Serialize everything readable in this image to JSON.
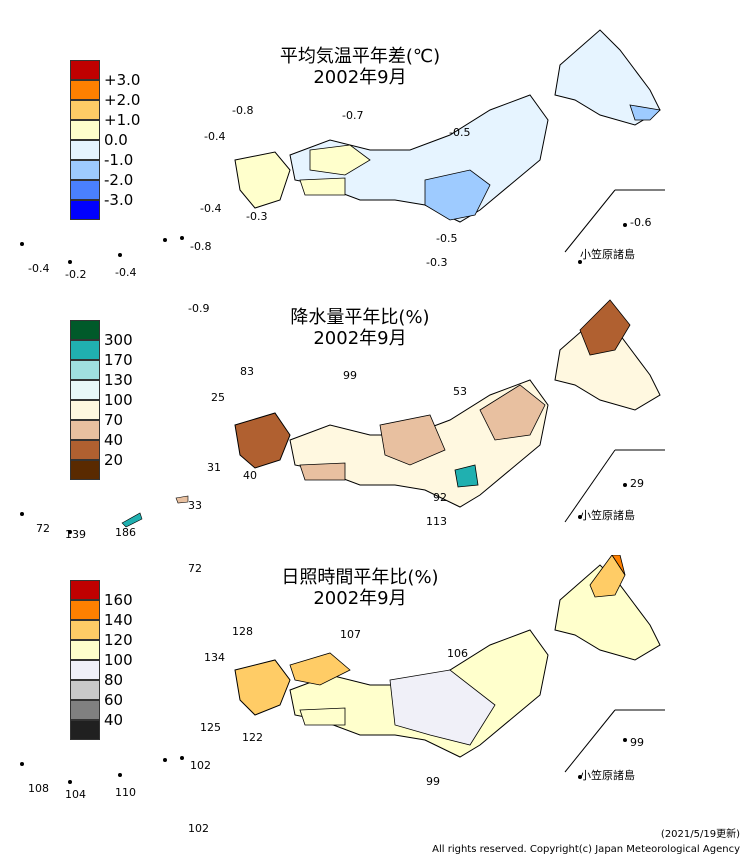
{
  "panels": [
    {
      "title_line1": "平均気温平年差(℃)",
      "title_line2": "2002年9月",
      "legend": [
        {
          "label": "+3.0",
          "color": "#c00000"
        },
        {
          "label": "+2.0",
          "color": "#ff8000"
        },
        {
          "label": "+1.0",
          "color": "#ffcc66"
        },
        {
          "label": "0.0",
          "color": "#ffffcc"
        },
        {
          "label": "-1.0",
          "color": "#e6f4ff"
        },
        {
          "label": "-2.0",
          "color": "#9ecbff"
        },
        {
          "label": "-3.0",
          "color": "#4a80ff"
        },
        {
          "label": "",
          "color": "#0000ff"
        }
      ],
      "values": [
        "-0.8",
        "-0.7",
        "-0.4",
        "-0.5",
        "-0.4",
        "-0.3",
        "-0.5",
        "-0.6",
        "-0.3",
        "-0.8",
        "-0.4",
        "-0.2",
        "-0.4",
        "-0.9"
      ],
      "islands_label": "小笠原諸島"
    },
    {
      "title_line1": "降水量平年比(%)",
      "title_line2": "2002年9月",
      "legend": [
        {
          "label": "300",
          "color": "#005a2a"
        },
        {
          "label": "170",
          "color": "#20b0b0"
        },
        {
          "label": "130",
          "color": "#a0e0e0"
        },
        {
          "label": "100",
          "color": "#e8f8f8"
        },
        {
          "label": "70",
          "color": "#fff8e0"
        },
        {
          "label": "40",
          "color": "#e8c0a0"
        },
        {
          "label": "20",
          "color": "#b06030"
        },
        {
          "label": "",
          "color": "#5a2a00"
        }
      ],
      "values": [
        "83",
        "99",
        "25",
        "53",
        "31",
        "40",
        "92",
        "29",
        "113",
        "33",
        "72",
        "139",
        "186",
        "72"
      ],
      "islands_label": "小笠原諸島"
    },
    {
      "title_line1": "日照時間平年比(%)",
      "title_line2": "2002年9月",
      "legend": [
        {
          "label": "160",
          "color": "#c00000"
        },
        {
          "label": "140",
          "color": "#ff8000"
        },
        {
          "label": "120",
          "color": "#ffcc66"
        },
        {
          "label": "100",
          "color": "#ffffcc"
        },
        {
          "label": "80",
          "color": "#f0f0f8"
        },
        {
          "label": "60",
          "color": "#c8c8c8"
        },
        {
          "label": "40",
          "color": "#808080"
        },
        {
          "label": "",
          "color": "#202020"
        }
      ],
      "values": [
        "128",
        "107",
        "134",
        "106",
        "125",
        "122",
        "99",
        "99",
        "102",
        "108",
        "104",
        "110",
        "102"
      ],
      "islands_label": "小笠原諸島"
    }
  ],
  "footer": {
    "updated": "(2021/5/19更新)",
    "copyright": "All rights reserved. Copyright(c) Japan Meteorological Agency"
  }
}
